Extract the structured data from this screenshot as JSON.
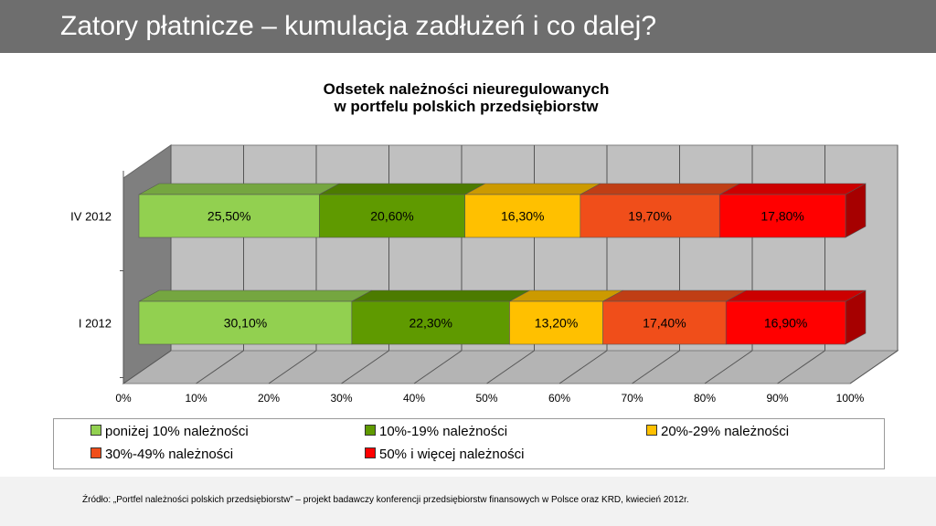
{
  "slide": {
    "title": "Zatory płatnicze – kumulacja zadłużeń i co dalej?"
  },
  "chart_data": {
    "type": "bar",
    "orientation": "horizontal",
    "stacked": "percent",
    "title_lines": [
      "Odsetek należności nieuregulowanych",
      "w portfelu polskich przedsiębiorstw"
    ],
    "categories": [
      "IV 2012",
      "I 2012"
    ],
    "x_ticks": [
      "0%",
      "10%",
      "20%",
      "30%",
      "40%",
      "50%",
      "60%",
      "70%",
      "80%",
      "90%",
      "100%"
    ],
    "xlim": [
      0,
      100
    ],
    "grid": true,
    "legend_position": "bottom",
    "series": [
      {
        "name": "poniżej 10% należności",
        "color": "#92d050",
        "values": [
          25.5,
          30.1
        ],
        "labels": [
          "25,50%",
          "30,10%"
        ]
      },
      {
        "name": "10%-19% należności",
        "color": "#5f9a00",
        "values": [
          20.6,
          22.3
        ],
        "labels": [
          "20,60%",
          "22,30%"
        ]
      },
      {
        "name": "20%-29% należności",
        "color": "#ffc000",
        "values": [
          16.3,
          13.2
        ],
        "labels": [
          "16,30%",
          "13,20%"
        ]
      },
      {
        "name": "30%-49% należności",
        "color": "#f04e1a",
        "values": [
          19.7,
          17.4
        ],
        "labels": [
          "19,70%",
          "17,40%"
        ]
      },
      {
        "name": "50% i więcej należności",
        "color": "#ff0000",
        "values": [
          17.8,
          16.9
        ],
        "labels": [
          "17,80%",
          "16,90%"
        ]
      }
    ]
  },
  "footer": {
    "source": "Źródło: „Portfel należności polskich przedsiębiorstw” – projekt badawczy konferencji przedsiębiorstw finansowych w Polsce oraz KRD, kwiecień 2012r."
  }
}
